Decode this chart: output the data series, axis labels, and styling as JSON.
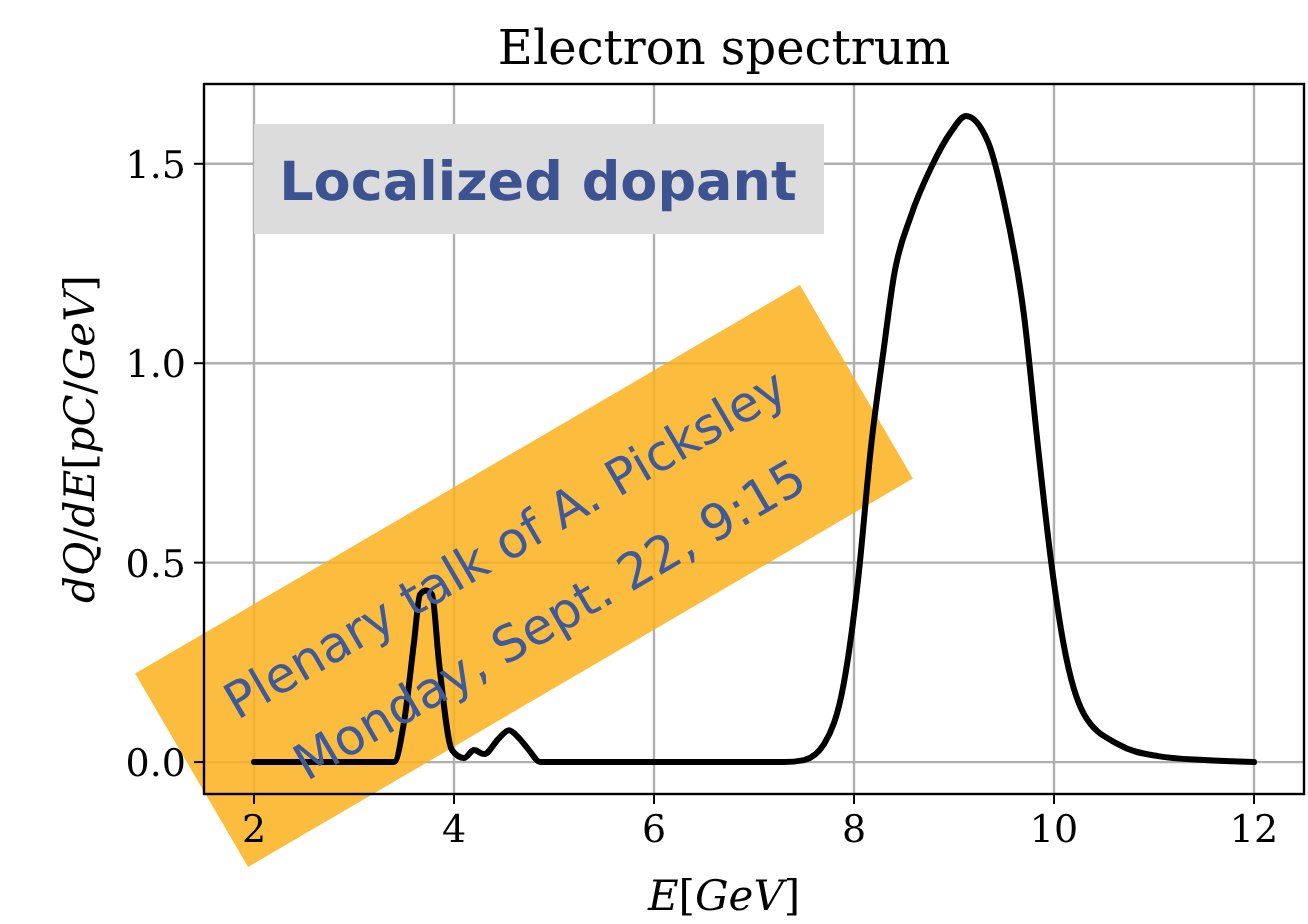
{
  "chart_data": {
    "type": "line",
    "title": "Electron spectrum",
    "xlabel": "E[GeV]",
    "ylabel": "dQ/dE[pC/GeV]",
    "xlim": [
      1.5,
      12.5
    ],
    "ylim": [
      -0.08,
      1.7
    ],
    "xticks": [
      2,
      4,
      6,
      8,
      10,
      12
    ],
    "yticks": [
      {
        "value": 0,
        "label": "0.0"
      },
      {
        "value": 0.5,
        "label": "0.5"
      },
      {
        "value": 1,
        "label": "1.0"
      },
      {
        "value": 1.5,
        "label": "1.5"
      }
    ],
    "grid": true,
    "marker": "none",
    "line_style": "solid",
    "annotations": [
      "Localized dopant",
      "Plenary talk of A. Picksley",
      "Monday, Sept. 22, 9:15"
    ],
    "series": [
      {
        "color": "#000000",
        "x": [
          2,
          3.4,
          3.5,
          3.6,
          3.66,
          3.72,
          3.78,
          3.85,
          3.98,
          4.1,
          4.2,
          4.3,
          4.45,
          4.55,
          4.65,
          4.75,
          4.86,
          5.5,
          6.5,
          7.3,
          7.5,
          7.7,
          7.9,
          8.04,
          8.17,
          8.3,
          8.4,
          8.57,
          8.77,
          8.97,
          9.12,
          9.34,
          9.5,
          9.7,
          9.84,
          9.97,
          10.1,
          10.3,
          10.64,
          11.04,
          11.5,
          12
        ],
        "values": [
          0,
          0,
          0.1,
          0.3,
          0.42,
          0.43,
          0.42,
          0.25,
          0.03,
          0.01,
          0.03,
          0.02,
          0.06,
          0.08,
          0.06,
          0.03,
          0,
          0,
          0,
          0,
          0.005,
          0.045,
          0.2,
          0.455,
          0.79,
          1.04,
          1.22,
          1.37,
          1.49,
          1.58,
          1.62,
          1.555,
          1.405,
          1.12,
          0.79,
          0.505,
          0.29,
          0.12,
          0.045,
          0.015,
          0.005,
          0
        ]
      }
    ]
  }
}
